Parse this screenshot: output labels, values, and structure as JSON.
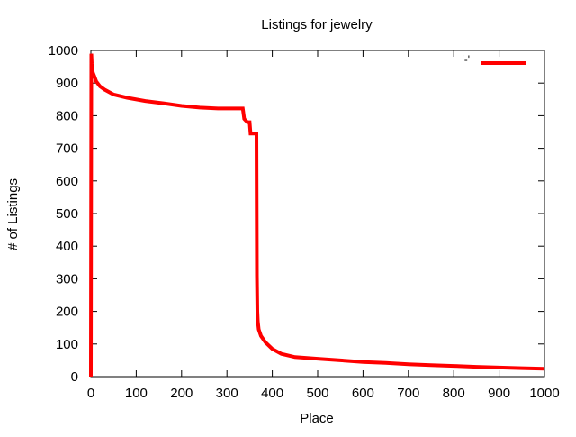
{
  "chart_data": {
    "type": "line",
    "title": "Listings for jewelry",
    "xlabel": "Place",
    "ylabel": "# of Listings",
    "xlim": [
      0,
      1000
    ],
    "ylim": [
      0,
      1000
    ],
    "xticks": [
      0,
      100,
      200,
      300,
      400,
      500,
      600,
      700,
      800,
      900,
      1000
    ],
    "yticks": [
      0,
      100,
      200,
      300,
      400,
      500,
      600,
      700,
      800,
      900,
      1000
    ],
    "grid": false,
    "legend": {
      "position": "top-right",
      "label": "'-'"
    },
    "series": [
      {
        "color": "#ff0000",
        "x": [
          0,
          1,
          2,
          3,
          5,
          8,
          12,
          20,
          30,
          50,
          80,
          120,
          160,
          200,
          240,
          280,
          300,
          320,
          335,
          338,
          345,
          350,
          352,
          365,
          366,
          367,
          368,
          370,
          375,
          385,
          400,
          420,
          450,
          500,
          550,
          600,
          650,
          700,
          750,
          800,
          850,
          900,
          950,
          1000
        ],
        "y": [
          0,
          990,
          960,
          940,
          930,
          920,
          905,
          890,
          880,
          865,
          855,
          845,
          838,
          830,
          825,
          822,
          822,
          822,
          822,
          790,
          780,
          780,
          745,
          745,
          310,
          200,
          170,
          145,
          125,
          105,
          85,
          70,
          60,
          55,
          50,
          45,
          42,
          38,
          35,
          33,
          30,
          28,
          26,
          24
        ]
      }
    ]
  },
  "colors": {
    "series": "#ff0000",
    "axis": "#000000",
    "background": "#ffffff"
  }
}
